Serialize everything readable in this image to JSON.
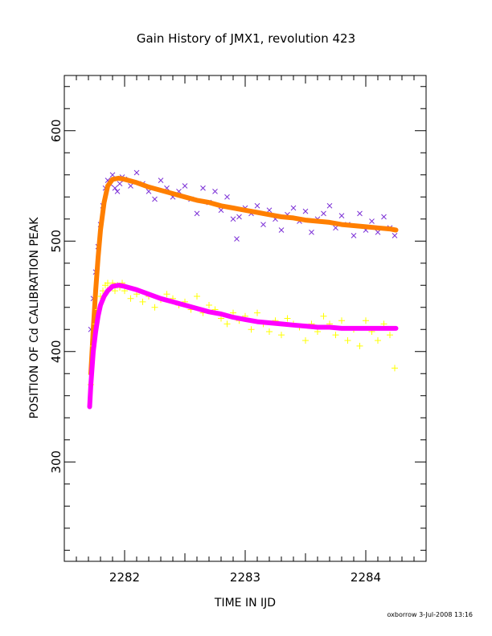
{
  "chart_data": {
    "type": "scatter",
    "title": "Gain History of JMX1, revolution 423",
    "xlabel": "TIME IN IJD",
    "ylabel": "POSITION OF Cd CALIBRATION PEAK",
    "xlim": [
      2281.5,
      2284.5
    ],
    "ylim": [
      210,
      650
    ],
    "x_ticks": [
      2282,
      2283,
      2284
    ],
    "y_ticks": [
      300,
      400,
      500,
      600
    ],
    "grid": false,
    "series": [
      {
        "marker": "x",
        "color": "#7b2fd6",
        "x": [
          2281.72,
          2281.74,
          2281.76,
          2281.78,
          2281.8,
          2281.82,
          2281.84,
          2281.86,
          2281.88,
          2281.9,
          2281.92,
          2281.94,
          2281.96,
          2281.98,
          2282.0,
          2282.05,
          2282.1,
          2282.15,
          2282.2,
          2282.25,
          2282.3,
          2282.35,
          2282.4,
          2282.45,
          2282.5,
          2282.55,
          2282.6,
          2282.65,
          2282.7,
          2282.75,
          2282.8,
          2282.85,
          2282.9,
          2282.93,
          2282.95,
          2283.0,
          2283.05,
          2283.1,
          2283.15,
          2283.2,
          2283.25,
          2283.3,
          2283.35,
          2283.4,
          2283.45,
          2283.5,
          2283.55,
          2283.6,
          2283.65,
          2283.7,
          2283.75,
          2283.8,
          2283.85,
          2283.9,
          2283.95,
          2284.0,
          2284.05,
          2284.1,
          2284.15,
          2284.2,
          2284.24
        ],
        "y": [
          420,
          448,
          472,
          495,
          515,
          532,
          548,
          555,
          552,
          560,
          548,
          545,
          552,
          558,
          556,
          550,
          562,
          552,
          545,
          538,
          555,
          548,
          540,
          545,
          550,
          538,
          525,
          548,
          535,
          545,
          528,
          540,
          520,
          502,
          522,
          530,
          525,
          532,
          515,
          528,
          520,
          510,
          524,
          530,
          518,
          527,
          508,
          520,
          525,
          532,
          512,
          523,
          515,
          505,
          525,
          510,
          518,
          508,
          522,
          512,
          505
        ]
      },
      {
        "marker": "line",
        "color": "#ff7f00",
        "x": [
          2281.72,
          2281.74,
          2281.76,
          2281.78,
          2281.8,
          2281.83,
          2281.86,
          2281.9,
          2281.95,
          2282.0,
          2282.1,
          2282.2,
          2282.3,
          2282.4,
          2282.5,
          2282.6,
          2282.7,
          2282.8,
          2282.9,
          2283.0,
          2283.1,
          2283.2,
          2283.3,
          2283.4,
          2283.5,
          2283.6,
          2283.7,
          2283.8,
          2283.9,
          2284.0,
          2284.1,
          2284.2,
          2284.25
        ],
        "y": [
          380,
          420,
          455,
          485,
          510,
          535,
          550,
          556,
          557,
          556,
          553,
          549,
          546,
          543,
          540,
          537,
          535,
          532,
          530,
          528,
          526,
          524,
          522,
          521,
          519,
          518,
          517,
          515,
          514,
          513,
          512,
          511,
          510
        ]
      },
      {
        "marker": "+",
        "color": "#ffff00",
        "x": [
          2281.72,
          2281.74,
          2281.76,
          2281.78,
          2281.8,
          2281.82,
          2281.84,
          2281.86,
          2281.88,
          2281.9,
          2281.92,
          2281.94,
          2281.96,
          2281.98,
          2282.0,
          2282.05,
          2282.1,
          2282.15,
          2282.2,
          2282.25,
          2282.3,
          2282.35,
          2282.4,
          2282.45,
          2282.5,
          2282.55,
          2282.6,
          2282.65,
          2282.7,
          2282.75,
          2282.8,
          2282.85,
          2282.9,
          2282.95,
          2283.0,
          2283.05,
          2283.1,
          2283.15,
          2283.2,
          2283.25,
          2283.3,
          2283.35,
          2283.4,
          2283.45,
          2283.5,
          2283.55,
          2283.6,
          2283.65,
          2283.7,
          2283.75,
          2283.8,
          2283.85,
          2283.9,
          2283.95,
          2284.0,
          2284.05,
          2284.1,
          2284.15,
          2284.2,
          2284.24
        ],
        "y": [
          370,
          405,
          425,
          438,
          450,
          455,
          460,
          462,
          458,
          462,
          455,
          460,
          458,
          462,
          455,
          448,
          452,
          445,
          450,
          440,
          447,
          452,
          448,
          442,
          445,
          438,
          450,
          435,
          442,
          438,
          430,
          425,
          435,
          428,
          432,
          420,
          435,
          425,
          418,
          428,
          415,
          430,
          425,
          422,
          410,
          425,
          418,
          432,
          425,
          415,
          428,
          410,
          420,
          405,
          428,
          418,
          410,
          425,
          415,
          385
        ]
      },
      {
        "marker": "line",
        "color": "#ff00ff",
        "x": [
          2281.71,
          2281.72,
          2281.73,
          2281.74,
          2281.76,
          2281.78,
          2281.8,
          2281.83,
          2281.86,
          2281.9,
          2281.95,
          2282.0,
          2282.1,
          2282.2,
          2282.3,
          2282.4,
          2282.5,
          2282.6,
          2282.7,
          2282.8,
          2282.9,
          2283.0,
          2283.1,
          2283.2,
          2283.3,
          2283.4,
          2283.5,
          2283.6,
          2283.7,
          2283.8,
          2283.9,
          2284.0,
          2284.1,
          2284.2,
          2284.25
        ],
        "y": [
          350,
          370,
          385,
          400,
          418,
          432,
          442,
          450,
          455,
          459,
          460,
          459,
          456,
          452,
          448,
          445,
          442,
          439,
          436,
          434,
          431,
          429,
          427,
          426,
          425,
          424,
          423,
          422,
          422,
          421,
          421,
          421,
          421,
          421,
          421
        ]
      }
    ]
  },
  "footer": {
    "credit": "oxborrow  3-Jul-2008 13:16"
  }
}
